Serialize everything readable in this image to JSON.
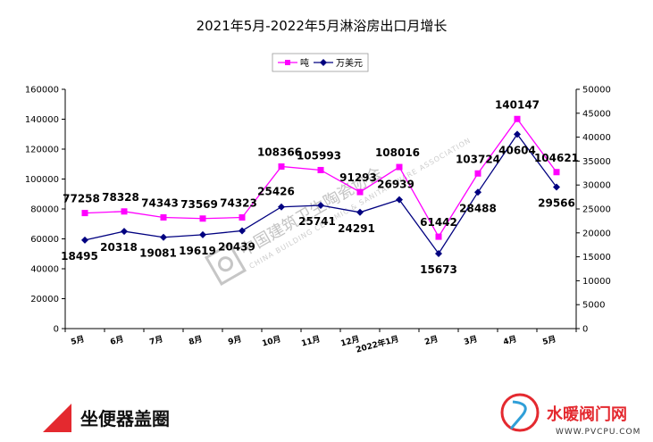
{
  "chart_data": {
    "type": "line",
    "title": "2021年5月-2022年5月淋浴房出口月增长",
    "categories": [
      "5月",
      "6月",
      "7月",
      "8月",
      "9月",
      "10月",
      "11月",
      "12月",
      "2022年1月",
      "2月",
      "3月",
      "4月",
      "5月"
    ],
    "series": [
      {
        "name": "吨",
        "axis": "left",
        "color": "#ff00ff",
        "marker": "square",
        "values": [
          77258,
          78328,
          74343,
          73569,
          74323,
          108366,
          105993,
          91293,
          108016,
          61442,
          103724,
          140147,
          104621
        ]
      },
      {
        "name": "万美元",
        "axis": "right",
        "color": "#000080",
        "marker": "diamond",
        "values": [
          18495,
          20318,
          19081,
          19619,
          20439,
          25426,
          25741,
          24291,
          26939,
          15673,
          28488,
          40604,
          29566
        ]
      }
    ],
    "ylim_left": [
      0,
      160000
    ],
    "yticks_left": [
      "0",
      "20000",
      "40000",
      "60000",
      "80000",
      "100000",
      "120000",
      "140000",
      "160000"
    ],
    "ylim_right": [
      0,
      50000
    ],
    "yticks_right": [
      "0",
      "5000",
      "10000",
      "15000",
      "20000",
      "25000",
      "30000",
      "35000",
      "40000",
      "45000",
      "50000"
    ],
    "legend_position": "top-center",
    "grid": false
  },
  "watermark": {
    "text": "中国建筑卫生陶瓷协会",
    "subtext": "CHINA BUILDING CERAMIC & SANITARYWARE ASSOCIATION"
  },
  "footer": {
    "title": "坐便器盖圈",
    "accent_color": "#e4292f"
  },
  "brand": {
    "name": "水暖阀门网",
    "url": "WWW.PVCPU.COM",
    "color": "#e4292f"
  }
}
